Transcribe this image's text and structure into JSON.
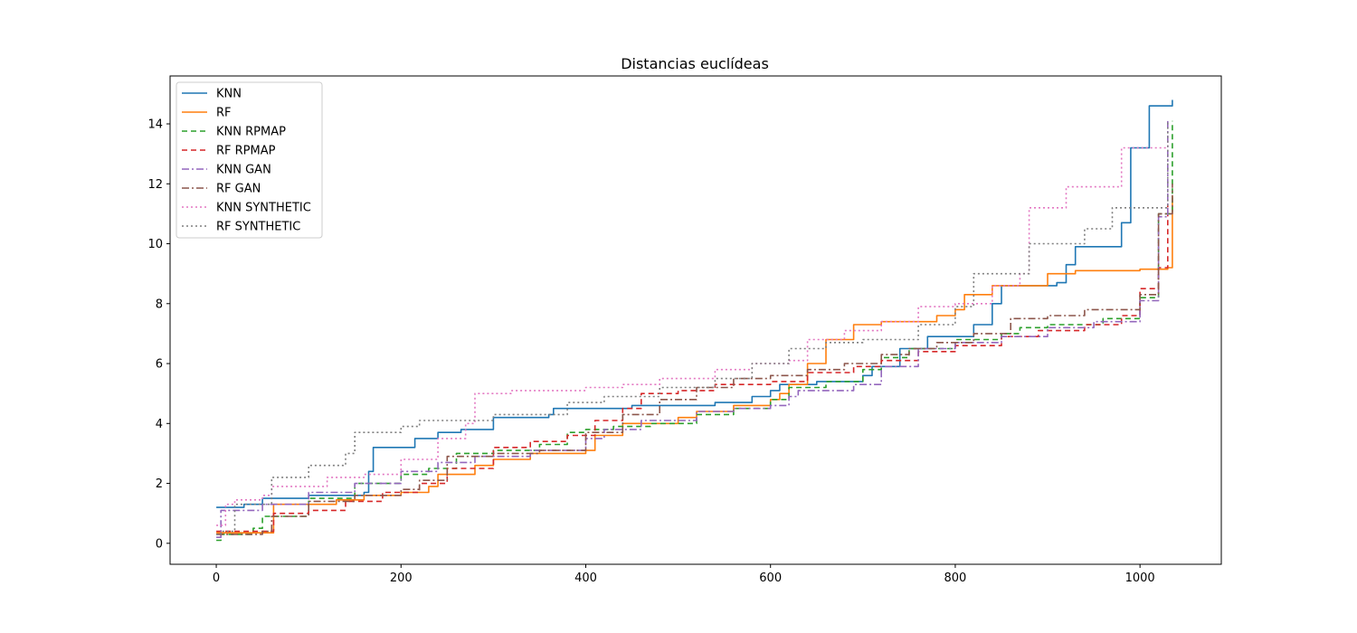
{
  "chart_data": {
    "type": "line",
    "title": "Distancias euclídeas",
    "xlabel": "",
    "ylabel": "",
    "xlim": [
      -50,
      1088
    ],
    "ylim": [
      -0.7,
      15.6
    ],
    "xticks": [
      0,
      200,
      400,
      600,
      800,
      1000
    ],
    "yticks": [
      0,
      2,
      4,
      6,
      8,
      10,
      12,
      14
    ],
    "grid": false,
    "legend_position": "top-left",
    "series": [
      {
        "name": "KNN",
        "color": "#1f77b4",
        "dash": "solid",
        "points": [
          [
            0,
            1.2
          ],
          [
            20,
            1.2
          ],
          [
            30,
            1.3
          ],
          [
            50,
            1.5
          ],
          [
            100,
            1.6
          ],
          [
            140,
            1.6
          ],
          [
            160,
            1.7
          ],
          [
            165,
            2.4
          ],
          [
            170,
            3.2
          ],
          [
            215,
            3.5
          ],
          [
            240,
            3.7
          ],
          [
            265,
            3.8
          ],
          [
            300,
            4.2
          ],
          [
            360,
            4.3
          ],
          [
            365,
            4.5
          ],
          [
            450,
            4.6
          ],
          [
            540,
            4.7
          ],
          [
            580,
            4.9
          ],
          [
            600,
            5.1
          ],
          [
            610,
            5.3
          ],
          [
            650,
            5.4
          ],
          [
            700,
            5.6
          ],
          [
            710,
            5.9
          ],
          [
            740,
            6.5
          ],
          [
            770,
            6.9
          ],
          [
            820,
            7.3
          ],
          [
            840,
            8.0
          ],
          [
            850,
            8.6
          ],
          [
            910,
            8.7
          ],
          [
            920,
            9.3
          ],
          [
            930,
            9.9
          ],
          [
            980,
            10.7
          ],
          [
            990,
            13.2
          ],
          [
            1010,
            14.6
          ],
          [
            1035,
            14.8
          ]
        ]
      },
      {
        "name": "RF",
        "color": "#ff7f0e",
        "dash": "solid",
        "points": [
          [
            0,
            0.35
          ],
          [
            60,
            0.35
          ],
          [
            62,
            1.3
          ],
          [
            130,
            1.45
          ],
          [
            160,
            1.6
          ],
          [
            200,
            1.7
          ],
          [
            230,
            1.9
          ],
          [
            240,
            2.3
          ],
          [
            280,
            2.6
          ],
          [
            300,
            2.8
          ],
          [
            340,
            3.0
          ],
          [
            400,
            3.1
          ],
          [
            410,
            3.6
          ],
          [
            440,
            4.0
          ],
          [
            500,
            4.2
          ],
          [
            520,
            4.4
          ],
          [
            560,
            4.6
          ],
          [
            600,
            4.8
          ],
          [
            610,
            5.0
          ],
          [
            620,
            5.3
          ],
          [
            640,
            6.0
          ],
          [
            660,
            6.8
          ],
          [
            690,
            7.3
          ],
          [
            720,
            7.4
          ],
          [
            780,
            7.6
          ],
          [
            800,
            7.8
          ],
          [
            810,
            8.3
          ],
          [
            840,
            8.6
          ],
          [
            900,
            9.0
          ],
          [
            930,
            9.1
          ],
          [
            1000,
            9.15
          ],
          [
            1030,
            9.2
          ],
          [
            1035,
            11.6
          ]
        ]
      },
      {
        "name": "KNN RPMAP",
        "color": "#2ca02c",
        "dash": "6,4",
        "points": [
          [
            0,
            0.1
          ],
          [
            5,
            0.3
          ],
          [
            40,
            0.5
          ],
          [
            50,
            0.9
          ],
          [
            100,
            1.5
          ],
          [
            150,
            2.0
          ],
          [
            200,
            2.3
          ],
          [
            230,
            2.5
          ],
          [
            260,
            3.0
          ],
          [
            300,
            3.1
          ],
          [
            350,
            3.3
          ],
          [
            380,
            3.7
          ],
          [
            400,
            3.8
          ],
          [
            430,
            3.9
          ],
          [
            470,
            4.0
          ],
          [
            520,
            4.3
          ],
          [
            560,
            4.5
          ],
          [
            600,
            4.8
          ],
          [
            620,
            5.2
          ],
          [
            660,
            5.4
          ],
          [
            700,
            5.8
          ],
          [
            720,
            6.2
          ],
          [
            750,
            6.5
          ],
          [
            800,
            6.8
          ],
          [
            850,
            7.0
          ],
          [
            870,
            7.2
          ],
          [
            900,
            7.3
          ],
          [
            960,
            7.5
          ],
          [
            1000,
            8.2
          ],
          [
            1020,
            11.0
          ],
          [
            1035,
            14.1
          ]
        ]
      },
      {
        "name": "RF RPMAP",
        "color": "#d62728",
        "dash": "6,4",
        "points": [
          [
            0,
            0.4
          ],
          [
            60,
            0.4
          ],
          [
            62,
            1.0
          ],
          [
            100,
            1.1
          ],
          [
            140,
            1.4
          ],
          [
            180,
            1.7
          ],
          [
            220,
            2.0
          ],
          [
            250,
            2.5
          ],
          [
            300,
            3.2
          ],
          [
            340,
            3.4
          ],
          [
            380,
            3.6
          ],
          [
            410,
            4.1
          ],
          [
            440,
            4.5
          ],
          [
            460,
            5.0
          ],
          [
            500,
            5.1
          ],
          [
            540,
            5.3
          ],
          [
            600,
            5.4
          ],
          [
            640,
            5.7
          ],
          [
            690,
            5.9
          ],
          [
            720,
            6.1
          ],
          [
            760,
            6.4
          ],
          [
            800,
            6.6
          ],
          [
            850,
            6.9
          ],
          [
            890,
            7.1
          ],
          [
            940,
            7.3
          ],
          [
            980,
            7.6
          ],
          [
            1000,
            8.5
          ],
          [
            1020,
            9.2
          ],
          [
            1030,
            11.3
          ]
        ]
      },
      {
        "name": "KNN GAN",
        "color": "#9467bd",
        "dash": "8,3,2,3",
        "points": [
          [
            0,
            0.2
          ],
          [
            5,
            1.1
          ],
          [
            50,
            1.3
          ],
          [
            100,
            1.7
          ],
          [
            150,
            2.0
          ],
          [
            200,
            2.4
          ],
          [
            240,
            2.7
          ],
          [
            280,
            2.9
          ],
          [
            340,
            3.1
          ],
          [
            400,
            3.5
          ],
          [
            420,
            3.8
          ],
          [
            460,
            4.1
          ],
          [
            520,
            4.4
          ],
          [
            560,
            4.5
          ],
          [
            600,
            4.6
          ],
          [
            620,
            4.9
          ],
          [
            630,
            5.1
          ],
          [
            690,
            5.3
          ],
          [
            720,
            5.9
          ],
          [
            760,
            6.5
          ],
          [
            800,
            6.7
          ],
          [
            850,
            6.9
          ],
          [
            900,
            7.2
          ],
          [
            950,
            7.4
          ],
          [
            1000,
            8.1
          ],
          [
            1020,
            10.9
          ],
          [
            1030,
            14.1
          ]
        ]
      },
      {
        "name": "RF GAN",
        "color": "#8c564b",
        "dash": "8,3,2,3",
        "points": [
          [
            0,
            0.3
          ],
          [
            50,
            0.4
          ],
          [
            60,
            0.9
          ],
          [
            100,
            1.4
          ],
          [
            150,
            1.6
          ],
          [
            200,
            1.8
          ],
          [
            220,
            2.1
          ],
          [
            250,
            2.9
          ],
          [
            300,
            3.0
          ],
          [
            350,
            3.1
          ],
          [
            400,
            3.7
          ],
          [
            440,
            4.3
          ],
          [
            480,
            4.8
          ],
          [
            520,
            5.2
          ],
          [
            560,
            5.5
          ],
          [
            600,
            5.6
          ],
          [
            640,
            5.8
          ],
          [
            680,
            6.0
          ],
          [
            720,
            6.3
          ],
          [
            750,
            6.5
          ],
          [
            780,
            6.7
          ],
          [
            820,
            7.0
          ],
          [
            860,
            7.5
          ],
          [
            900,
            7.6
          ],
          [
            940,
            7.8
          ],
          [
            1000,
            8.3
          ],
          [
            1020,
            11.0
          ],
          [
            1035,
            12.0
          ]
        ]
      },
      {
        "name": "KNN SYNTHETIC",
        "color": "#e377c2",
        "dash": "2,3",
        "points": [
          [
            0,
            0.6
          ],
          [
            10,
            1.3
          ],
          [
            20,
            1.45
          ],
          [
            50,
            1.6
          ],
          [
            60,
            1.9
          ],
          [
            120,
            2.2
          ],
          [
            160,
            2.3
          ],
          [
            200,
            2.8
          ],
          [
            240,
            3.5
          ],
          [
            270,
            4.0
          ],
          [
            280,
            5.0
          ],
          [
            320,
            5.1
          ],
          [
            400,
            5.2
          ],
          [
            440,
            5.3
          ],
          [
            480,
            5.5
          ],
          [
            540,
            5.8
          ],
          [
            580,
            6.0
          ],
          [
            620,
            6.1
          ],
          [
            640,
            6.8
          ],
          [
            680,
            7.1
          ],
          [
            720,
            7.4
          ],
          [
            760,
            7.9
          ],
          [
            800,
            8.0
          ],
          [
            840,
            8.6
          ],
          [
            870,
            9.0
          ],
          [
            880,
            11.2
          ],
          [
            920,
            11.9
          ],
          [
            980,
            13.2
          ],
          [
            1030,
            13.5
          ]
        ]
      },
      {
        "name": "RF SYNTHETIC",
        "color": "#7f7f7f",
        "dash": "2,3",
        "points": [
          [
            0,
            0.3
          ],
          [
            5,
            0.4
          ],
          [
            20,
            1.3
          ],
          [
            60,
            2.2
          ],
          [
            100,
            2.6
          ],
          [
            140,
            3.0
          ],
          [
            150,
            3.7
          ],
          [
            200,
            3.9
          ],
          [
            220,
            4.1
          ],
          [
            300,
            4.3
          ],
          [
            380,
            4.7
          ],
          [
            420,
            4.9
          ],
          [
            480,
            5.2
          ],
          [
            540,
            5.5
          ],
          [
            580,
            6.0
          ],
          [
            620,
            6.5
          ],
          [
            660,
            6.7
          ],
          [
            700,
            6.8
          ],
          [
            760,
            7.3
          ],
          [
            800,
            7.9
          ],
          [
            820,
            9.0
          ],
          [
            880,
            10.0
          ],
          [
            940,
            10.5
          ],
          [
            970,
            11.2
          ],
          [
            1000,
            11.2
          ],
          [
            1030,
            14.1
          ]
        ]
      }
    ]
  }
}
